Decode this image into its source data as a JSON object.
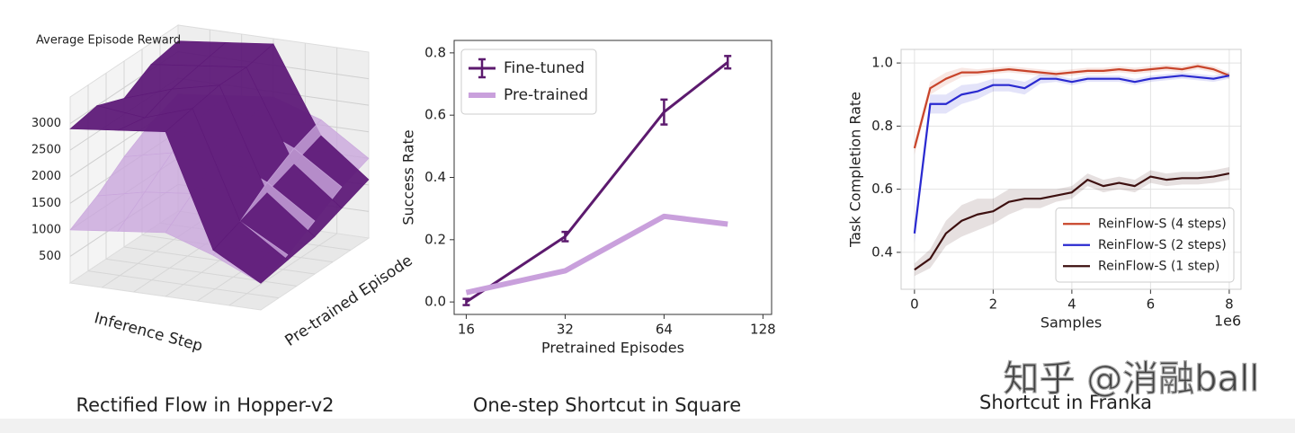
{
  "chart_data": [
    {
      "type": "surface3d",
      "zlabel": "Average Episode Reward",
      "xlabel": "Inference Step",
      "ylabel": "Pre-trained Episode",
      "zlim": [
        0,
        3500
      ],
      "zticks": [
        500,
        1000,
        1500,
        2000,
        2500,
        3000
      ],
      "surfaces": [
        {
          "color": "#c9a6dc",
          "z": [
            [
              1000,
              1100,
              1200,
              900,
              500
            ],
            [
              1300,
              1500,
              1600,
              1200,
              700
            ],
            [
              1700,
              1900,
              2000,
              1600,
              1000
            ],
            [
              2000,
              2200,
              2300,
              1900,
              1300
            ],
            [
              2200,
              2300,
              2400,
              2100,
              1500
            ]
          ]
        },
        {
          "color": "#5e1a78",
          "z": [
            [
              2900,
              3000,
              3100,
              1000,
              500
            ],
            [
              3000,
              2900,
              3200,
              1200,
              600
            ],
            [
              2800,
              3100,
              3300,
              1400,
              700
            ],
            [
              3100,
              3200,
              3300,
              1600,
              900
            ],
            [
              3200,
              3300,
              3400,
              1800,
              1100
            ]
          ]
        }
      ],
      "caption": "Rectified Flow in Hopper-v2"
    },
    {
      "type": "line",
      "xlabel": "Pretrained Episodes",
      "ylabel": "Success Rate",
      "xscale": "log",
      "xlim": [
        14.7,
        136
      ],
      "xticks": [
        16,
        32,
        64,
        128
      ],
      "ylim": [
        -0.04,
        0.84
      ],
      "yticks": [
        {
          "value": 0,
          "label": "0.0"
        },
        0.2,
        0.4,
        0.6,
        0.8
      ],
      "grid": false,
      "legend": "upper left",
      "x": [
        16,
        32,
        64,
        100
      ],
      "series": [
        {
          "name": "Fine-tuned",
          "color": "#5c1a6e",
          "values": [
            0.0,
            0.21,
            0.61,
            0.77
          ],
          "error": [
            0.01,
            0.015,
            0.04,
            0.02
          ]
        },
        {
          "name": "Pre-trained",
          "color": "#c9a0dc",
          "values": [
            0.03,
            0.1,
            0.275,
            0.25
          ]
        }
      ],
      "caption": "One-step Shortcut in Square"
    },
    {
      "type": "line",
      "xlabel": "Samples",
      "ylabel": "Task Completion Rate",
      "offset_label": "1e6",
      "xlim": [
        -0.34,
        8.3
      ],
      "xticks": [
        0,
        2,
        4,
        6,
        8
      ],
      "ylim": [
        0.283,
        1.043
      ],
      "yticks": [
        0.4,
        0.6,
        0.8,
        {
          "value": 1,
          "label": "1.0"
        }
      ],
      "grid": true,
      "legend": "lower right",
      "x": [
        0,
        0.4,
        0.8,
        1.2,
        1.6,
        2,
        2.4,
        2.8,
        3.2,
        3.6,
        4,
        4.4,
        4.8,
        5.2,
        5.6,
        6,
        6.4,
        6.8,
        7.2,
        7.6,
        8
      ],
      "series": [
        {
          "name": "ReinFlow-S (4 steps)",
          "color": "#c8442a",
          "values": [
            0.73,
            0.92,
            0.95,
            0.97,
            0.97,
            0.975,
            0.98,
            0.975,
            0.97,
            0.965,
            0.97,
            0.975,
            0.975,
            0.98,
            0.975,
            0.98,
            0.985,
            0.98,
            0.99,
            0.98,
            0.96
          ],
          "error": [
            0.02,
            0.02,
            0.02,
            0.015,
            0.01,
            0.01,
            0.01,
            0.01,
            0.01,
            0.01,
            0.01,
            0.01,
            0.01,
            0.01,
            0.01,
            0.01,
            0.01,
            0.01,
            0.01,
            0.01,
            0.01
          ]
        },
        {
          "name": "ReinFlow-S (2 steps)",
          "color": "#2a2ad0",
          "values": [
            0.46,
            0.87,
            0.87,
            0.9,
            0.91,
            0.93,
            0.93,
            0.92,
            0.95,
            0.95,
            0.94,
            0.95,
            0.95,
            0.95,
            0.94,
            0.95,
            0.955,
            0.96,
            0.955,
            0.95,
            0.96
          ],
          "error": [
            0.03,
            0.03,
            0.03,
            0.03,
            0.025,
            0.02,
            0.02,
            0.02,
            0.015,
            0.01,
            0.01,
            0.01,
            0.01,
            0.01,
            0.01,
            0.01,
            0.01,
            0.01,
            0.01,
            0.01,
            0.01
          ]
        },
        {
          "name": "ReinFlow-S (1 step)",
          "color": "#3d1010",
          "values": [
            0.345,
            0.38,
            0.46,
            0.5,
            0.52,
            0.53,
            0.56,
            0.57,
            0.57,
            0.58,
            0.59,
            0.63,
            0.61,
            0.62,
            0.61,
            0.64,
            0.63,
            0.635,
            0.635,
            0.64,
            0.65
          ],
          "error": [
            0.02,
            0.03,
            0.04,
            0.05,
            0.05,
            0.04,
            0.04,
            0.03,
            0.03,
            0.02,
            0.02,
            0.02,
            0.02,
            0.02,
            0.02,
            0.02,
            0.02,
            0.02,
            0.02,
            0.02,
            0.02
          ]
        }
      ],
      "caption": "Shortcut in Franka"
    }
  ],
  "watermark": "知乎 @消融ball"
}
